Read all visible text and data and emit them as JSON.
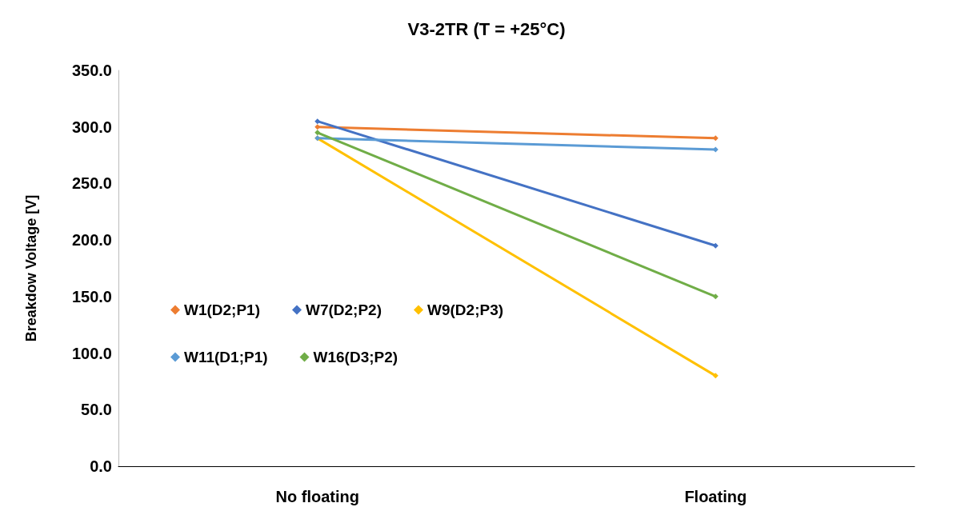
{
  "chart_data": {
    "type": "line",
    "title": "V3-2TR (T = +25°C)",
    "ylabel": "Breakdow Voltage [V]",
    "categories": [
      "No floating",
      "Floating"
    ],
    "series": [
      {
        "name": "W1(D2;P1)",
        "color": "#ed7d31",
        "values": [
          300,
          290
        ]
      },
      {
        "name": "W7(D2;P2)",
        "color": "#4472c4",
        "values": [
          305,
          195
        ]
      },
      {
        "name": "W9(D2;P3)",
        "color": "#ffc000",
        "values": [
          290,
          80
        ]
      },
      {
        "name": "W11(D1;P1)",
        "color": "#5b9bd5",
        "values": [
          290,
          280
        ]
      },
      {
        "name": "W16(D3;P2)",
        "color": "#70ad47",
        "values": [
          295,
          150
        ]
      }
    ],
    "ylim": [
      0,
      350
    ],
    "yticks": [
      {
        "value": 0,
        "label": "0.0"
      },
      {
        "value": 50,
        "label": "50.0"
      },
      {
        "value": 100,
        "label": "100.0"
      },
      {
        "value": 150,
        "label": "150.0"
      },
      {
        "value": 200,
        "label": "200.0"
      },
      {
        "value": 250,
        "label": "250.0"
      },
      {
        "value": 300,
        "label": "300.0"
      },
      {
        "value": 350,
        "label": "350.0"
      }
    ],
    "grid": false,
    "legend": "left",
    "marker": "diamond",
    "line_style": "solid"
  }
}
